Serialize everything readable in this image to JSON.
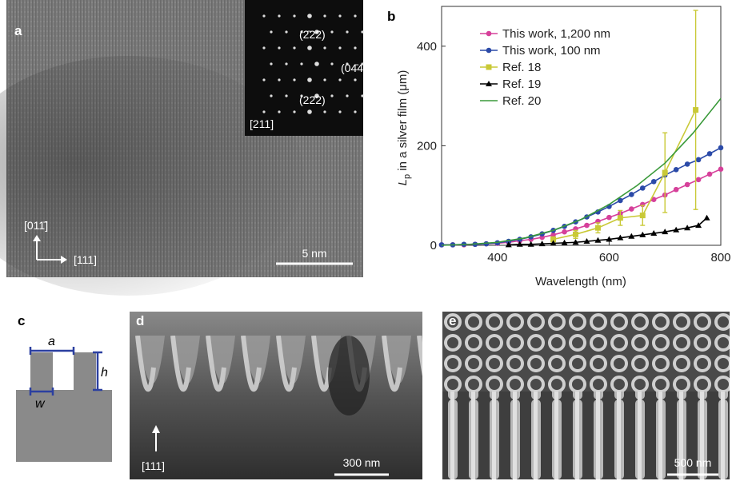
{
  "panels": {
    "a": {
      "letter": "a",
      "inset_zone": "[211]",
      "spot_top": "(2̄22)",
      "spot_right": "(04̄4)",
      "spot_bottom": "(22̄2)",
      "dir_up": "[011̄]",
      "dir_right": "[111]",
      "scale": "5 nm"
    },
    "b": {
      "letter": "b"
    },
    "c": {
      "letter": "c",
      "label_a": "a",
      "label_h": "h",
      "label_w": "w"
    },
    "d": {
      "letter": "d",
      "dir_up": "[111]",
      "scale": "300 nm"
    },
    "e": {
      "letter": "e",
      "scale": "500 nm"
    }
  },
  "chart_data": {
    "type": "line",
    "xlabel": "Wavelength (nm)",
    "ylabel_symbol": "L",
    "ylabel_subscript": "p",
    "ylabel_rest": " in a silver film (μm)",
    "xlim": [
      300,
      800
    ],
    "ylim": [
      0,
      480
    ],
    "xticks": [
      400,
      600,
      800
    ],
    "yticks": [
      0,
      200,
      400
    ],
    "legend": "upper left",
    "series": [
      {
        "name": "This work, 1,200 nm",
        "color": "#d6409a",
        "marker": "circle",
        "x": [
          300,
          320,
          340,
          360,
          380,
          400,
          420,
          440,
          460,
          480,
          500,
          520,
          540,
          560,
          580,
          600,
          620,
          640,
          660,
          680,
          700,
          720,
          740,
          760,
          780,
          800
        ],
        "values": [
          1,
          1,
          1,
          2,
          3,
          4,
          6,
          9,
          12,
          16,
          21,
          27,
          33,
          40,
          48,
          56,
          64,
          73,
          82,
          92,
          101,
          112,
          122,
          132,
          143,
          153
        ]
      },
      {
        "name": "This work, 100 nm",
        "color": "#2b4aa8",
        "marker": "circle",
        "x": [
          300,
          320,
          340,
          360,
          380,
          400,
          420,
          440,
          460,
          480,
          500,
          520,
          540,
          560,
          580,
          600,
          620,
          640,
          660,
          680,
          700,
          720,
          740,
          760,
          780,
          800
        ],
        "values": [
          1,
          1,
          2,
          2,
          3,
          5,
          8,
          12,
          17,
          23,
          30,
          38,
          47,
          57,
          67,
          78,
          90,
          102,
          115,
          128,
          141,
          152,
          163,
          172,
          184,
          196
        ]
      },
      {
        "name": "Ref. 18",
        "color": "#c9c936",
        "marker": "square",
        "x": [
          500,
          540,
          580,
          620,
          660,
          700,
          755
        ],
        "values": [
          12,
          22,
          35,
          55,
          60,
          146,
          272
        ],
        "errors": [
          5,
          8,
          10,
          15,
          20,
          80,
          200
        ]
      },
      {
        "name": "Ref. 19",
        "color": "#000000",
        "marker": "triangle",
        "x": [
          420,
          440,
          460,
          480,
          500,
          520,
          540,
          560,
          580,
          600,
          620,
          640,
          660,
          680,
          700,
          720,
          740,
          760,
          775
        ],
        "values": [
          1,
          2,
          2,
          3,
          4,
          5,
          6,
          8,
          10,
          12,
          15,
          18,
          21,
          24,
          27,
          31,
          35,
          40,
          55
        ]
      },
      {
        "name": "Ref. 20",
        "color": "#3a9a3a",
        "marker": "none",
        "x": [
          300,
          350,
          400,
          450,
          500,
          550,
          600,
          650,
          700,
          750,
          800
        ],
        "values": [
          0,
          2,
          6,
          15,
          30,
          52,
          82,
          120,
          165,
          225,
          295
        ]
      }
    ]
  }
}
